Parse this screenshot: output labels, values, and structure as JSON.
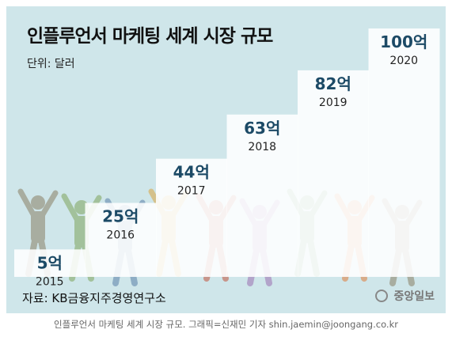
{
  "title": "인플루언서 마케팅 세계 시장 규모",
  "unit_label": "단위: 달러",
  "source": "자료: KB금융지주경영연구소",
  "logo_text": "중앙일보",
  "caption": "인플루언서 마케팅 세계 시장 규모. 그래픽=신재민 기자 shin.jaemin@joongang.co.kr",
  "colors": {
    "background": "#cfe6ea",
    "step": "#ffffff",
    "value_text": "#1c4a66",
    "year_text": "#222222",
    "figures": [
      "#8a7f65",
      "#7fa35c",
      "#5a7fa8",
      "#d9a441",
      "#c2543c",
      "#9c6fb0",
      "#5f9e6e",
      "#e07b39"
    ]
  },
  "chart_data": {
    "type": "bar",
    "title": "인플루언서 마케팅 세계 시장 규모",
    "unit": "달러",
    "categories": [
      "2015",
      "2016",
      "2017",
      "2018",
      "2019",
      "2020"
    ],
    "values": [
      5,
      25,
      44,
      63,
      82,
      100
    ],
    "value_labels": [
      "5억",
      "25억",
      "44억",
      "63억",
      "82억",
      "100억"
    ],
    "style": "staircase",
    "ylim": [
      0,
      100
    ]
  }
}
